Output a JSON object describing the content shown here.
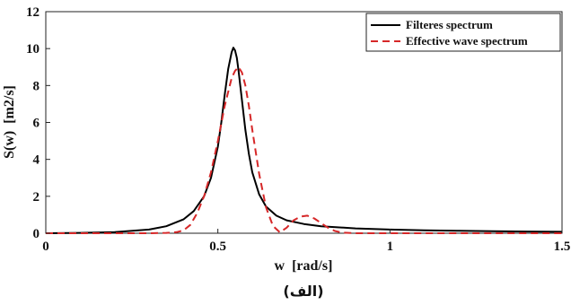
{
  "chart_data": {
    "type": "line",
    "xlabel": "w  [rad/s]",
    "ylabel": "S(w)  [m2/s]",
    "xlim": [
      0,
      1.5
    ],
    "ylim": [
      0,
      12
    ],
    "xticks": [
      0,
      0.5,
      1,
      1.5
    ],
    "xtick_labels": [
      "0",
      "0.5",
      "1",
      "1.5"
    ],
    "yticks": [
      0,
      2,
      4,
      6,
      8,
      10,
      12
    ],
    "ytick_labels": [
      "0",
      "2",
      "4",
      "6",
      "8",
      "10",
      "12"
    ],
    "grid": false,
    "legend_position": "top-right",
    "caption": "(الف)",
    "series": [
      {
        "name": "Filteres spectrum",
        "color": "#000000",
        "dash": "solid",
        "x": [
          0,
          0.1,
          0.2,
          0.3,
          0.35,
          0.4,
          0.43,
          0.46,
          0.48,
          0.5,
          0.51,
          0.52,
          0.53,
          0.54,
          0.545,
          0.55,
          0.555,
          0.56,
          0.57,
          0.58,
          0.59,
          0.6,
          0.62,
          0.64,
          0.67,
          0.7,
          0.75,
          0.8,
          0.9,
          1.0,
          1.1,
          1.2,
          1.3,
          1.4,
          1.5
        ],
        "y": [
          0.0,
          0.02,
          0.06,
          0.2,
          0.38,
          0.75,
          1.2,
          2.0,
          3.0,
          4.7,
          6.0,
          7.5,
          8.9,
          9.8,
          10.05,
          9.9,
          9.5,
          8.8,
          7.2,
          5.6,
          4.3,
          3.3,
          2.1,
          1.45,
          0.95,
          0.7,
          0.5,
          0.38,
          0.26,
          0.2,
          0.16,
          0.13,
          0.11,
          0.09,
          0.08
        ]
      },
      {
        "name": "Effective wave spectrum",
        "color": "#d62728",
        "dash": "dashed",
        "x": [
          0,
          0.1,
          0.2,
          0.3,
          0.35,
          0.38,
          0.4,
          0.42,
          0.44,
          0.46,
          0.48,
          0.5,
          0.52,
          0.54,
          0.55,
          0.56,
          0.57,
          0.58,
          0.59,
          0.6,
          0.62,
          0.64,
          0.66,
          0.68,
          0.7,
          0.72,
          0.74,
          0.76,
          0.78,
          0.8,
          0.82,
          0.84,
          0.86,
          0.9,
          1.0,
          1.2,
          1.5
        ],
        "y": [
          0.0,
          0.0,
          0.0,
          0.0,
          0.02,
          0.06,
          0.15,
          0.45,
          1.1,
          2.0,
          3.3,
          5.0,
          6.9,
          8.4,
          8.8,
          9.0,
          8.7,
          8.0,
          6.9,
          5.6,
          3.2,
          1.4,
          0.4,
          0.05,
          0.3,
          0.7,
          0.9,
          0.95,
          0.8,
          0.55,
          0.3,
          0.12,
          0.04,
          0.0,
          0.0,
          0.0,
          0.0
        ]
      }
    ]
  }
}
